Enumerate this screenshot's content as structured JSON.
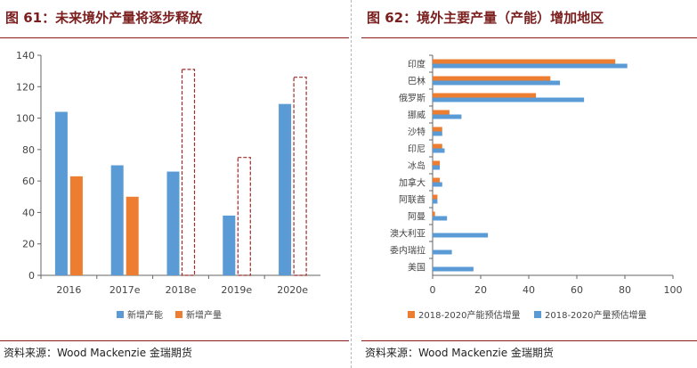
{
  "left": {
    "title": "图 61：未来境外产量将逐步释放",
    "source": "资料来源：Wood Mackenzie 金瑞期货"
  },
  "right": {
    "title": "图 62：境外主要产量（产能）增加地区",
    "source": "资料来源：Wood Mackenzie 金瑞期货"
  },
  "chart_data": [
    {
      "type": "bar",
      "orientation": "vertical",
      "categories": [
        "2016",
        "2017e",
        "2018e",
        "2019e",
        "2020e"
      ],
      "series": [
        {
          "name": "新增产能",
          "values": [
            104,
            70,
            66,
            38,
            109
          ],
          "color": "#5b9bd5"
        },
        {
          "name": "新增产量",
          "values": [
            63,
            50,
            null,
            null,
            null
          ],
          "color": "#ed7d31"
        }
      ],
      "dashed_outline": {
        "values": [
          null,
          null,
          131,
          75,
          126
        ],
        "color": "#9c2a2a"
      },
      "ylim": [
        0,
        140
      ],
      "yticks": [
        0,
        20,
        40,
        60,
        80,
        100,
        120,
        140
      ],
      "legend_position": "bottom",
      "grid": false
    },
    {
      "type": "bar",
      "orientation": "horizontal",
      "categories": [
        "印度",
        "巴林",
        "俄罗斯",
        "挪威",
        "沙特",
        "印尼",
        "冰岛",
        "加拿大",
        "阿联酋",
        "阿曼",
        "澳大利亚",
        "委内瑞拉",
        "美国"
      ],
      "series": [
        {
          "name": "2018-2020产能预估增量",
          "values": [
            76,
            49,
            43,
            7,
            4,
            4,
            3,
            3,
            2,
            1,
            0,
            0,
            0
          ],
          "color": "#ed7d31"
        },
        {
          "name": "2018-2020产量预估增量",
          "values": [
            81,
            53,
            63,
            12,
            4,
            5,
            3,
            4,
            2,
            6,
            23,
            8,
            17
          ],
          "color": "#5b9bd5"
        }
      ],
      "xlim": [
        0,
        100
      ],
      "xticks": [
        0,
        20,
        40,
        60,
        80,
        100
      ],
      "legend_position": "bottom",
      "grid": false
    }
  ]
}
